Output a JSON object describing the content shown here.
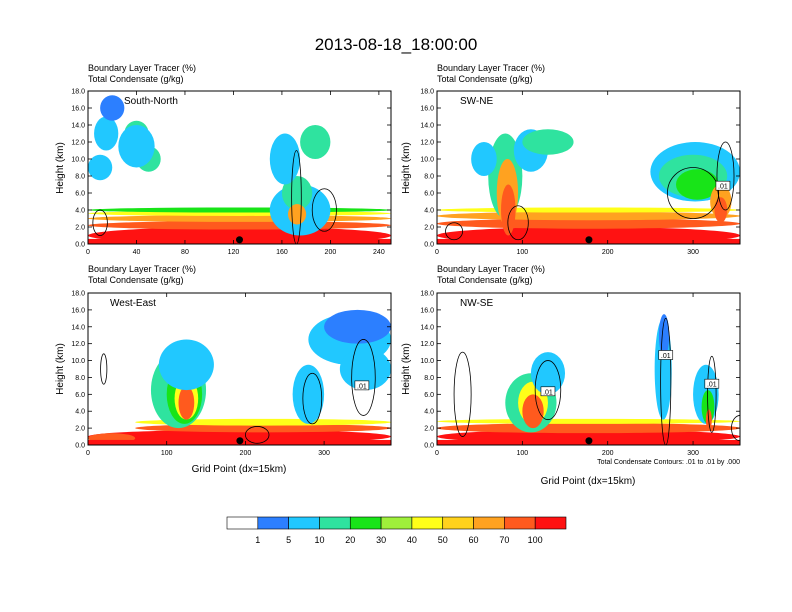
{
  "figure": {
    "title": "2013-08-18_18:00:00",
    "footnote": "Total Condensate Contours: .01 to .01 by .000",
    "xlabel": "Grid Point (dx=15km)"
  },
  "colors": {
    "levels": [
      "#ffffff",
      "#2c7fff",
      "#21c8ff",
      "#2fe39f",
      "#18e418",
      "#9ff03b",
      "#ffff19",
      "#ffd21c",
      "#ffa220",
      "#ff5a1e",
      "#ff1212"
    ],
    "frame": "#000000",
    "contour": "#000000"
  },
  "colorbar": {
    "labels": [
      "1",
      "5",
      "10",
      "20",
      "30",
      "40",
      "50",
      "60",
      "70",
      "100"
    ]
  },
  "chart_data": [
    {
      "type": "heatmap",
      "name": "South-North",
      "subtitle_1": "Boundary Layer Tracer   (%)",
      "subtitle_2": "Total Condensate   (g/kg)",
      "ylabel": "Height (km)",
      "xlim": [
        0,
        250
      ],
      "ylim": [
        0,
        18
      ],
      "xticks": [
        "0",
        "40",
        "80",
        "120",
        "160",
        "200",
        "240"
      ],
      "xtick_values": [
        0,
        40,
        80,
        120,
        160,
        200,
        240
      ],
      "yticks": [
        "0.0",
        "2.0",
        "4.0",
        "6.0",
        "8.0",
        "10.0",
        "12.0",
        "14.0",
        "16.0",
        "18.0"
      ],
      "marker_x": 125,
      "contour_labels": []
    },
    {
      "type": "heatmap",
      "name": "SW-NE",
      "subtitle_1": "Boundary Layer Tracer   (%)",
      "subtitle_2": "Total Condensate   (g/kg)",
      "ylabel": "Height (km)",
      "xlim": [
        0,
        355
      ],
      "ylim": [
        0,
        18
      ],
      "xticks": [
        "0",
        "100",
        "200",
        "300"
      ],
      "xtick_values": [
        0,
        100,
        200,
        300
      ],
      "yticks": [
        "0.0",
        "2.0",
        "4.0",
        "6.0",
        "8.0",
        "10.0",
        "12.0",
        "14.0",
        "16.0",
        "18.0"
      ],
      "marker_x": 178,
      "contour_labels": [
        {
          "text": ".01",
          "x": 335,
          "y": 6.8
        }
      ]
    },
    {
      "type": "heatmap",
      "name": "West-East",
      "subtitle_1": "Boundary Layer Tracer   (%)",
      "subtitle_2": "Total Condensate   (g/kg)",
      "ylabel": "Height (km)",
      "xlim": [
        0,
        385
      ],
      "ylim": [
        0,
        18
      ],
      "xticks": [
        "0",
        "100",
        "200",
        "300"
      ],
      "xtick_values": [
        0,
        100,
        200,
        300
      ],
      "yticks": [
        "0.0",
        "2.0",
        "4.0",
        "6.0",
        "8.0",
        "10.0",
        "12.0",
        "14.0",
        "16.0",
        "18.0"
      ],
      "marker_x": 193,
      "contour_labels": [
        {
          "text": ".01",
          "x": 348,
          "y": 7.0
        }
      ]
    },
    {
      "type": "heatmap",
      "name": "NW-SE",
      "subtitle_1": "Boundary Layer Tracer   (%)",
      "subtitle_2": "Total Condensate   (g/kg)",
      "ylabel": "Height (km)",
      "xlim": [
        0,
        355
      ],
      "ylim": [
        0,
        18
      ],
      "xticks": [
        "0",
        "100",
        "200",
        "300"
      ],
      "xtick_values": [
        0,
        100,
        200,
        300
      ],
      "yticks": [
        "0.0",
        "2.0",
        "4.0",
        "6.0",
        "8.0",
        "10.0",
        "12.0",
        "14.0",
        "16.0",
        "18.0"
      ],
      "marker_x": 178,
      "contour_labels": [
        {
          "text": ".01",
          "x": 130,
          "y": 6.3
        },
        {
          "text": ".01",
          "x": 268,
          "y": 10.6
        },
        {
          "text": ".01",
          "x": 322,
          "y": 7.2
        }
      ]
    }
  ]
}
